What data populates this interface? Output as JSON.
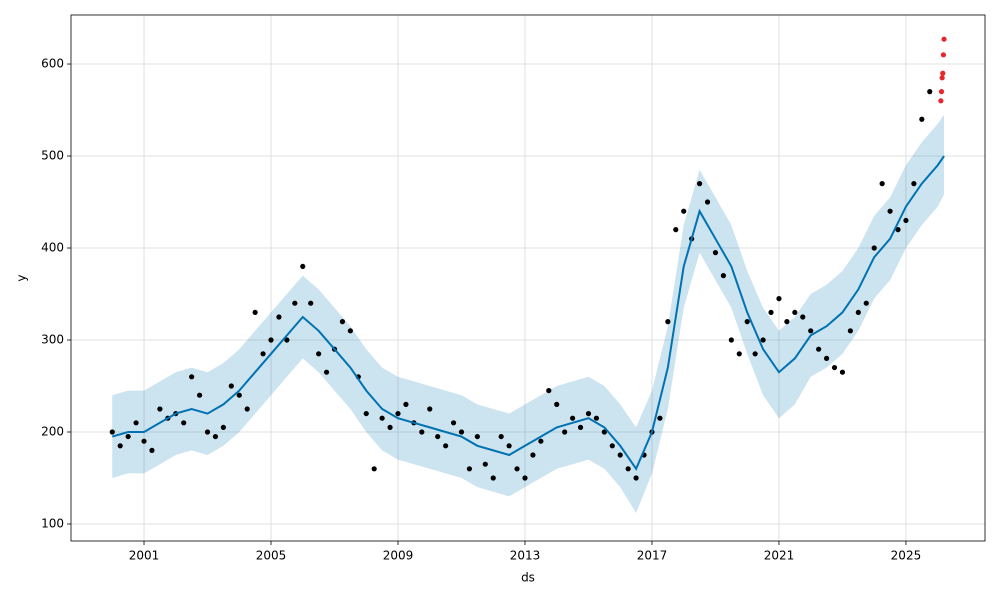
{
  "chart_data": {
    "type": "forecast",
    "xlabel": "ds",
    "ylabel": "y",
    "xlim": [
      1998.7,
      2027.49
    ],
    "ylim": [
      81.5,
      653.3
    ],
    "xticks": [
      2001,
      2005,
      2009,
      2013,
      2017,
      2021,
      2025
    ],
    "yticks": [
      100,
      200,
      300,
      400,
      500,
      600
    ],
    "grid": true,
    "forecast": {
      "color": "#0072b2",
      "x": [
        2000.0,
        2000.5,
        2001.0,
        2001.5,
        2002.0,
        2002.5,
        2003.0,
        2003.5,
        2004.0,
        2004.5,
        2005.0,
        2005.5,
        2006.0,
        2006.5,
        2007.0,
        2007.5,
        2008.0,
        2008.5,
        2009.0,
        2009.5,
        2010.0,
        2010.5,
        2011.0,
        2011.5,
        2012.0,
        2012.5,
        2013.0,
        2013.5,
        2014.0,
        2014.5,
        2015.0,
        2015.5,
        2016.0,
        2016.5,
        2017.0,
        2017.5,
        2018.0,
        2018.5,
        2019.0,
        2019.5,
        2020.0,
        2020.5,
        2021.0,
        2021.5,
        2022.0,
        2022.5,
        2023.0,
        2023.5,
        2024.0,
        2024.5,
        2025.0,
        2025.5,
        2026.0,
        2026.2
      ],
      "values": [
        195,
        200,
        200,
        210,
        220,
        225,
        220,
        230,
        245,
        265,
        285,
        305,
        325,
        310,
        290,
        270,
        245,
        225,
        215,
        210,
        205,
        200,
        195,
        185,
        180,
        175,
        185,
        195,
        205,
        210,
        215,
        205,
        185,
        160,
        200,
        270,
        380,
        440,
        410,
        380,
        330,
        290,
        265,
        280,
        305,
        315,
        330,
        355,
        390,
        410,
        445,
        470,
        490,
        500
      ],
      "lower": [
        150,
        155,
        155,
        165,
        175,
        180,
        175,
        185,
        200,
        220,
        240,
        260,
        280,
        265,
        245,
        225,
        200,
        180,
        170,
        165,
        160,
        155,
        150,
        140,
        135,
        130,
        140,
        150,
        160,
        165,
        170,
        160,
        140,
        112,
        155,
        225,
        335,
        395,
        365,
        335,
        285,
        240,
        215,
        230,
        260,
        270,
        285,
        310,
        345,
        365,
        400,
        425,
        445,
        458
      ],
      "upper": [
        240,
        245,
        245,
        255,
        265,
        270,
        265,
        275,
        290,
        310,
        330,
        350,
        370,
        355,
        335,
        315,
        290,
        270,
        260,
        255,
        250,
        245,
        240,
        230,
        225,
        220,
        230,
        240,
        250,
        255,
        260,
        250,
        230,
        205,
        245,
        315,
        425,
        485,
        455,
        425,
        375,
        335,
        310,
        325,
        350,
        360,
        375,
        400,
        435,
        455,
        490,
        515,
        535,
        545
      ]
    },
    "observed": {
      "color": "#000000",
      "x": [
        2000.0,
        2000.25,
        2000.5,
        2000.75,
        2001.0,
        2001.25,
        2001.5,
        2001.75,
        2002.0,
        2002.25,
        2002.5,
        2002.75,
        2003.0,
        2003.25,
        2003.5,
        2003.75,
        2004.0,
        2004.25,
        2004.5,
        2004.75,
        2005.0,
        2005.25,
        2005.5,
        2005.75,
        2006.0,
        2006.25,
        2006.5,
        2006.75,
        2007.0,
        2007.25,
        2007.5,
        2007.75,
        2008.0,
        2008.25,
        2008.5,
        2008.75,
        2009.0,
        2009.25,
        2009.5,
        2009.75,
        2010.0,
        2010.25,
        2010.5,
        2010.75,
        2011.0,
        2011.25,
        2011.5,
        2011.75,
        2012.0,
        2012.25,
        2012.5,
        2012.75,
        2013.0,
        2013.25,
        2013.5,
        2013.75,
        2014.0,
        2014.25,
        2014.5,
        2014.75,
        2015.0,
        2015.25,
        2015.5,
        2015.75,
        2016.0,
        2016.25,
        2016.5,
        2016.75,
        2017.0,
        2017.25,
        2017.5,
        2017.75,
        2018.0,
        2018.25,
        2018.5,
        2018.75,
        2019.0,
        2019.25,
        2019.5,
        2019.75,
        2020.0,
        2020.25,
        2020.5,
        2020.75,
        2021.0,
        2021.25,
        2021.5,
        2021.75,
        2022.0,
        2022.25,
        2022.5,
        2022.75,
        2023.0,
        2023.25,
        2023.5,
        2023.75,
        2024.0,
        2024.25,
        2024.5,
        2024.75,
        2025.0,
        2025.25,
        2025.5,
        2025.75
      ],
      "values": [
        200,
        185,
        195,
        210,
        190,
        180,
        225,
        215,
        220,
        210,
        260,
        240,
        200,
        195,
        205,
        250,
        240,
        225,
        330,
        285,
        300,
        325,
        300,
        340,
        380,
        340,
        285,
        265,
        290,
        320,
        310,
        260,
        220,
        160,
        215,
        205,
        220,
        230,
        210,
        200,
        225,
        195,
        185,
        210,
        200,
        160,
        195,
        165,
        150,
        195,
        185,
        160,
        150,
        175,
        190,
        245,
        230,
        200,
        215,
        205,
        220,
        215,
        200,
        185,
        175,
        160,
        150,
        175,
        200,
        215,
        320,
        420,
        440,
        410,
        470,
        450,
        395,
        370,
        300,
        285,
        320,
        285,
        300,
        330,
        345,
        320,
        330,
        325,
        310,
        290,
        280,
        270,
        265,
        310,
        330,
        340,
        400,
        470,
        440,
        420,
        430,
        470,
        540,
        570
      ]
    },
    "recent": {
      "color": "#e8262b",
      "x": [
        2026.1,
        2026.12,
        2026.14,
        2026.16,
        2026.18,
        2026.2
      ],
      "values": [
        560,
        570,
        585,
        590,
        610,
        627
      ]
    }
  }
}
